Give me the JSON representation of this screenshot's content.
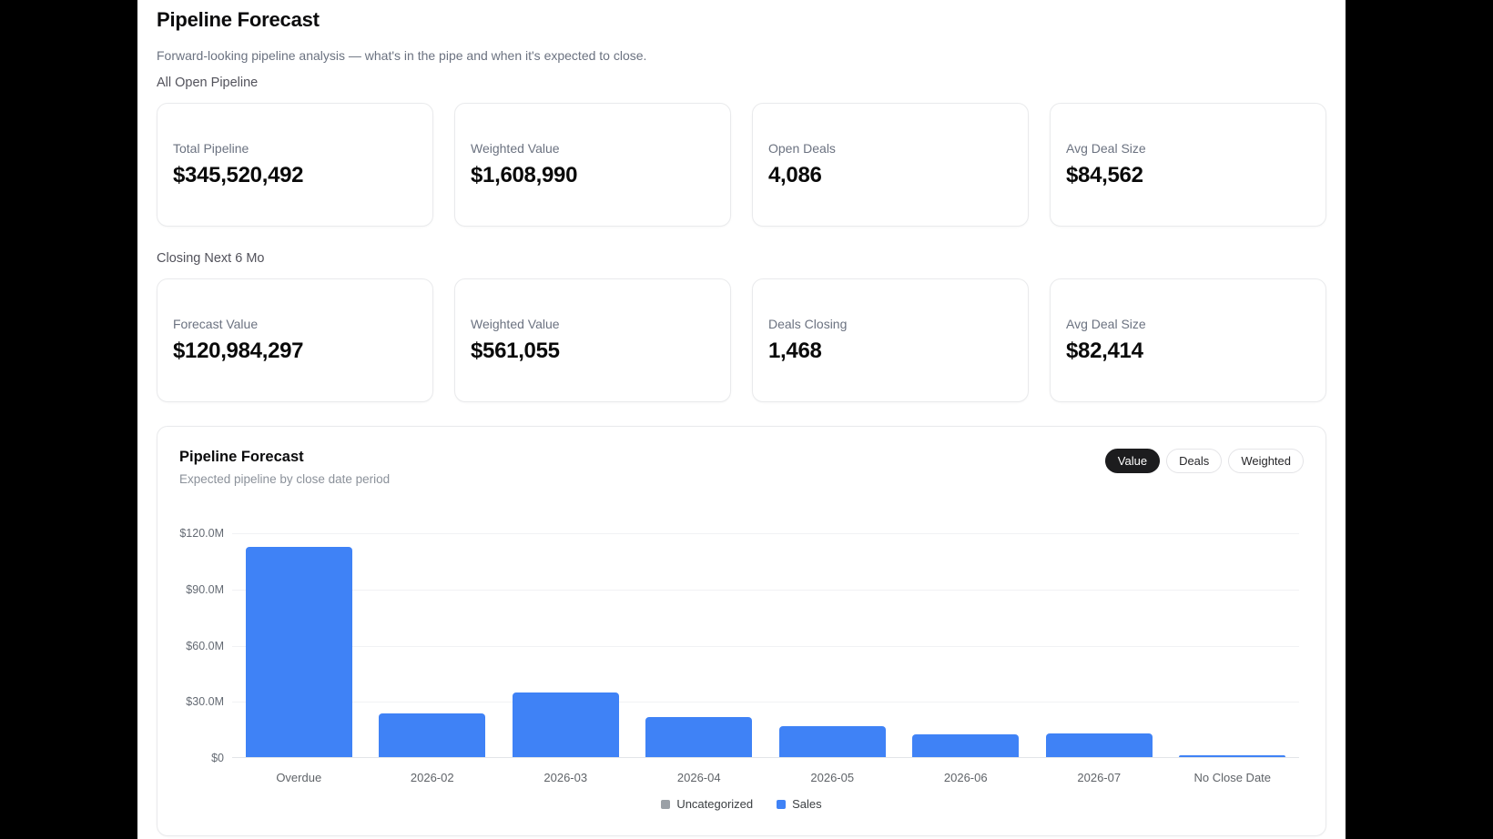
{
  "page": {
    "title": "Pipeline Forecast",
    "subtitle": "Forward-looking pipeline analysis — what's in the pipe and when it's expected to close."
  },
  "sections": [
    {
      "label": "All Open Pipeline",
      "cards": [
        {
          "label": "Total Pipeline",
          "value": "$345,520,492"
        },
        {
          "label": "Weighted Value",
          "value": "$1,608,990"
        },
        {
          "label": "Open Deals",
          "value": "4,086"
        },
        {
          "label": "Avg Deal Size",
          "value": "$84,562"
        }
      ]
    },
    {
      "label": "Closing Next 6 Mo",
      "cards": [
        {
          "label": "Forecast Value",
          "value": "$120,984,297"
        },
        {
          "label": "Weighted Value",
          "value": "$561,055"
        },
        {
          "label": "Deals Closing",
          "value": "1,468"
        },
        {
          "label": "Avg Deal Size",
          "value": "$82,414"
        }
      ]
    }
  ],
  "chart_card": {
    "title": "Pipeline Forecast",
    "subtitle": "Expected pipeline by close date period",
    "toggles": [
      {
        "label": "Value",
        "active": true
      },
      {
        "label": "Deals",
        "active": false
      },
      {
        "label": "Weighted",
        "active": false
      }
    ]
  },
  "chart_data": {
    "type": "bar",
    "title": "Pipeline Forecast",
    "subtitle": "Expected pipeline by close date period",
    "categories": [
      "Overdue",
      "2026-02",
      "2026-03",
      "2026-04",
      "2026-05",
      "2026-06",
      "2026-07",
      "No Close Date"
    ],
    "series": [
      {
        "name": "Uncategorized",
        "color": "#9aa0a6",
        "values": [
          0,
          0,
          0,
          0,
          0,
          0,
          0,
          0
        ]
      },
      {
        "name": "Sales",
        "color": "#3f82f6",
        "values": [
          112.3,
          23.2,
          34.4,
          21.3,
          16.5,
          12.1,
          12.6,
          1.0
        ]
      }
    ],
    "stacked": true,
    "unit": "USD millions",
    "ylim": [
      0,
      120
    ],
    "y_ticks": [
      {
        "value": 0,
        "label": "$0"
      },
      {
        "value": 30,
        "label": "$30.0M"
      },
      {
        "value": 60,
        "label": "$60.0M"
      },
      {
        "value": 90,
        "label": "$90.0M"
      },
      {
        "value": 120,
        "label": "$120.0M"
      }
    ],
    "grid": true,
    "legend_position": "bottom"
  }
}
